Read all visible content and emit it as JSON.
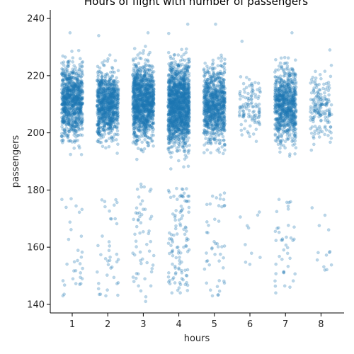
{
  "chart_data": {
    "type": "scatter",
    "title": "Hours of flight with number of passengers",
    "xlabel": "hours",
    "ylabel": "passengers",
    "categories": [
      "1",
      "2",
      "3",
      "4",
      "5",
      "6",
      "7",
      "8"
    ],
    "ylim": [
      137,
      243
    ],
    "yticks": [
      140,
      160,
      180,
      200,
      220,
      240
    ],
    "grid": false,
    "legend": "none",
    "style": "strip plot with horizontal jitter",
    "point_color": "#1f77b4",
    "point_alpha": 0.3,
    "groups": [
      {
        "category": "1",
        "count": 900,
        "main_range": [
          192,
          230
        ],
        "main_center": 211,
        "lower_cluster": [
          143,
          179
        ],
        "lower_count": 30,
        "min": 143,
        "max": 235
      },
      {
        "category": "2",
        "count": 900,
        "main_range": [
          194,
          228
        ],
        "main_center": 210,
        "lower_cluster": [
          143,
          177
        ],
        "lower_count": 38,
        "min": 143,
        "max": 234
      },
      {
        "category": "3",
        "count": 1200,
        "main_range": [
          193,
          231
        ],
        "main_center": 211,
        "lower_cluster": [
          141,
          183
        ],
        "lower_count": 55,
        "min": 141,
        "max": 235
      },
      {
        "category": "4",
        "count": 1500,
        "main_range": [
          190,
          233
        ],
        "main_center": 210,
        "lower_cluster": [
          144,
          181
        ],
        "lower_count": 110,
        "min": 144,
        "max": 238
      },
      {
        "category": "5",
        "count": 900,
        "main_range": [
          192,
          230
        ],
        "main_center": 210,
        "lower_cluster": [
          143,
          179
        ],
        "lower_count": 45,
        "min": 143,
        "max": 238
      },
      {
        "category": "6",
        "count": 120,
        "main_range": [
          195,
          228
        ],
        "main_center": 210,
        "lower_cluster": [
          154,
          174
        ],
        "lower_count": 9,
        "min": 154,
        "max": 232
      },
      {
        "category": "7",
        "count": 800,
        "main_range": [
          192,
          230
        ],
        "main_center": 210,
        "lower_cluster": [
          144,
          178
        ],
        "lower_count": 40,
        "min": 144,
        "max": 235
      },
      {
        "category": "8",
        "count": 180,
        "main_range": [
          194,
          228
        ],
        "main_center": 209,
        "lower_cluster": [
          152,
          174
        ],
        "lower_count": 12,
        "min": 152,
        "max": 229
      }
    ]
  }
}
